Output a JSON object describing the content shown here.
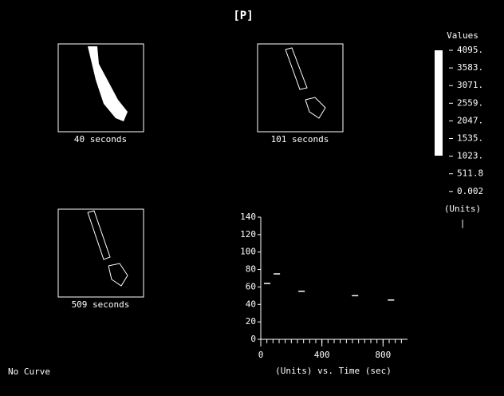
{
  "title": "[P]",
  "panels": [
    {
      "label": "40 seconds"
    },
    {
      "label": "101 seconds"
    },
    {
      "label": "509 seconds"
    }
  ],
  "colorbar": {
    "title": "Values",
    "labels": [
      "4095.",
      "3583.",
      "3071.",
      "2559.",
      "2047.",
      "1535.",
      "1023.",
      "511.8",
      "0.002"
    ],
    "units": "(Units)",
    "marker": "|"
  },
  "footer": "No Curve",
  "chart_data": {
    "type": "scatter",
    "x_label": "(Units) vs. Time (sec)",
    "x": [
      42,
      105,
      267,
      617,
      852
    ],
    "values": [
      64,
      75,
      55,
      50,
      45
    ],
    "color": "#ffffff",
    "xlim": [
      0,
      960
    ],
    "xticks": [
      0,
      400,
      800
    ],
    "ylim": [
      0,
      140
    ],
    "yticks": [
      0,
      20,
      40,
      60,
      80,
      100,
      120,
      140
    ]
  }
}
